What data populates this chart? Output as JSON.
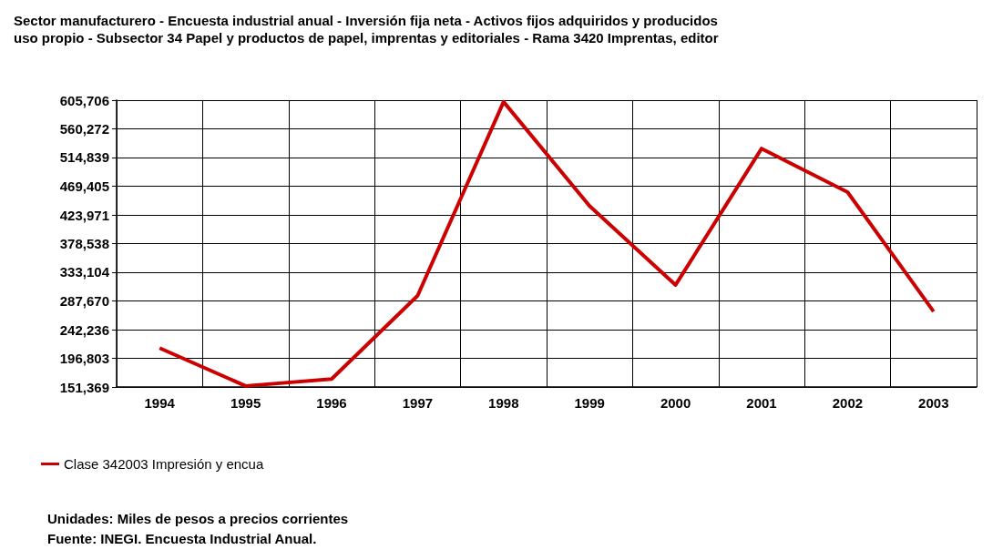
{
  "chart_data": {
    "type": "line",
    "title": "Sector manufacturero - Encuesta industrial anual - Inversión fija neta - Activos fijos adquiridos y producidos\nuso propio - Subsector 34 Papel y productos de papel, imprentas y editoriales - Rama 3420 Imprentas, editor",
    "categories": [
      "1994",
      "1995",
      "1996",
      "1997",
      "1998",
      "1999",
      "2000",
      "2001",
      "2002",
      "2003"
    ],
    "series": [
      {
        "name": "Clase 342003 Impresión y encua",
        "color": "#cc0000",
        "values": [
          213000,
          153000,
          164000,
          296000,
          603000,
          438000,
          313000,
          529000,
          460000,
          271000
        ]
      }
    ],
    "ylim": [
      151369,
      605706
    ],
    "yticks": [
      {
        "value": 151369,
        "label": "151,369"
      },
      {
        "value": 196803,
        "label": "196,803"
      },
      {
        "value": 242236,
        "label": "242,236"
      },
      {
        "value": 287670,
        "label": "287,670"
      },
      {
        "value": 333104,
        "label": "333,104"
      },
      {
        "value": 378538,
        "label": "378,538"
      },
      {
        "value": 423971,
        "label": "423,971"
      },
      {
        "value": 469405,
        "label": "469,405"
      },
      {
        "value": 514839,
        "label": "514,839"
      },
      {
        "value": 560272,
        "label": "560,272"
      },
      {
        "value": 605706,
        "label": "605,706"
      }
    ],
    "grid": true,
    "legend": "bottom left",
    "marker": "none",
    "line_style": "solid",
    "annotations": [
      "Unidades: Miles de pesos a precios corrientes",
      "Fuente: INEGI. Encuesta Industrial Anual."
    ]
  }
}
